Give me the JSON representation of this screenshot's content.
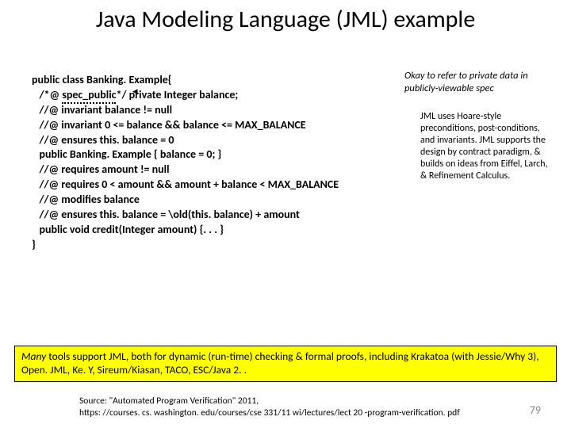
{
  "title": "Java Modeling Language (JML) example",
  "code": {
    "l1a": "public class Banking. Example{",
    "l2a": "   /*@ ",
    "l2spec": "spec_public",
    "l2b": "*/ private Integer balance;",
    "l3": "   //@ invariant balance != null",
    "l4": "   //@ invariant 0 <= balance && balance <= MAX_BALANCE",
    "l5": "",
    "l6": "   //@ ensures this. balance = 0",
    "l7": "   public Banking. Example { balance = 0; }",
    "l8": "",
    "l9": "   //@ requires amount != null",
    "l10": "   //@ requires 0 < amount && amount + balance < MAX_BALANCE",
    "l11": "   //@ modifies balance",
    "l12": "   //@ ensures this. balance = \\old(this. balance) + amount",
    "l13": "   public void credit(Integer amount) {. . . }",
    "l14": "}"
  },
  "note1": "Okay to refer to private data in publicly-viewable spec",
  "note2": "JML uses Hoare-style preconditions, post-conditions, and invariants. JML supports the design by contract paradigm, & builds on ideas from Eiffel, Larch, & Refinement Calculus.",
  "yellow": {
    "many": "Many",
    "rest": " tools support JML, both for dynamic (run-time) checking & formal proofs, including Krakatoa (with Jessie/Why 3), Open. JML, Ke. Y, Sireum/Kiasan, TACO, ESC/Java 2. ."
  },
  "source_l1": "Source: \"Automated Program Verification\" 2011,",
  "source_l2": "https: //courses. cs. washington. edu/courses/cse 331/11 wi/lectures/lect 20 -program-verification. pdf",
  "pagenum": "79"
}
